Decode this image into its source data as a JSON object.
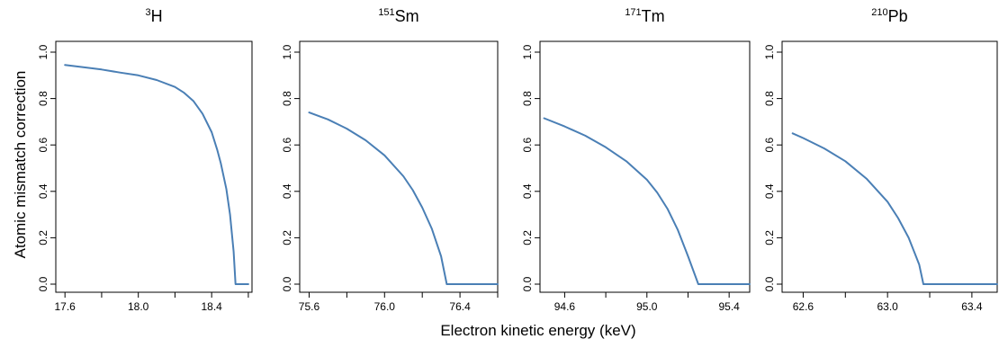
{
  "figure": {
    "xlabel": "Electron kinetic energy (keV)",
    "ylabel": "Atomic mismatch correction"
  },
  "chart_data": [
    {
      "type": "line",
      "title_sup": "3",
      "title_main": "H",
      "xlim": [
        17.55,
        18.62
      ],
      "ylim": [
        0,
        1.0
      ],
      "xticks": [
        17.6,
        17.8,
        18.0,
        18.2,
        18.4,
        18.6
      ],
      "xtick_labels": [
        "17.6",
        "",
        "18.0",
        "",
        "18.4",
        ""
      ],
      "yticks": [
        0.0,
        0.2,
        0.4,
        0.6,
        0.8,
        1.0
      ],
      "ytick_labels": [
        "0.0",
        "0.2",
        "0.4",
        "0.6",
        "0.8",
        "1.0"
      ],
      "series": [
        {
          "color": "#4a7fb5",
          "x": [
            17.6,
            17.7,
            17.8,
            17.9,
            18.0,
            18.1,
            18.2,
            18.25,
            18.3,
            18.35,
            18.4,
            18.43,
            18.45,
            18.48,
            18.5,
            18.52,
            18.53,
            18.55,
            18.6
          ],
          "y": [
            0.945,
            0.935,
            0.925,
            0.912,
            0.9,
            0.88,
            0.85,
            0.825,
            0.79,
            0.735,
            0.655,
            0.58,
            0.52,
            0.41,
            0.3,
            0.14,
            0.0,
            0.0,
            0.0
          ]
        }
      ]
    },
    {
      "type": "line",
      "title_sup": "151",
      "title_main": "Sm",
      "xlim": [
        75.55,
        76.6
      ],
      "ylim": [
        0,
        1.0
      ],
      "xticks": [
        75.6,
        75.8,
        76.0,
        76.2,
        76.4,
        76.6
      ],
      "xtick_labels": [
        "75.6",
        "",
        "76.0",
        "",
        "76.4",
        ""
      ],
      "yticks": [
        0.0,
        0.2,
        0.4,
        0.6,
        0.8,
        1.0
      ],
      "ytick_labels": [
        "0.0",
        "0.2",
        "0.4",
        "0.6",
        "0.8",
        "1.0"
      ],
      "series": [
        {
          "color": "#4a7fb5",
          "x": [
            75.6,
            75.7,
            75.8,
            75.9,
            76.0,
            76.1,
            76.15,
            76.2,
            76.25,
            76.3,
            76.33,
            76.35,
            76.45,
            76.55,
            76.6
          ],
          "y": [
            0.74,
            0.71,
            0.67,
            0.62,
            0.555,
            0.465,
            0.405,
            0.33,
            0.24,
            0.12,
            0.0,
            0.0,
            0.0,
            0.0,
            0.0
          ]
        }
      ]
    },
    {
      "type": "line",
      "title_sup": "171",
      "title_main": "Tm",
      "xlim": [
        94.48,
        95.5
      ],
      "ylim": [
        0,
        1.0
      ],
      "xticks": [
        94.6,
        94.8,
        95.0,
        95.2,
        95.4
      ],
      "xtick_labels": [
        "94.6",
        "",
        "95.0",
        "",
        "95.4"
      ],
      "yticks": [
        0.0,
        0.2,
        0.4,
        0.6,
        0.8,
        1.0
      ],
      "ytick_labels": [
        "0.0",
        "0.2",
        "0.4",
        "0.6",
        "0.8",
        "1.0"
      ],
      "series": [
        {
          "color": "#4a7fb5",
          "x": [
            94.5,
            94.6,
            94.7,
            94.8,
            94.9,
            95.0,
            95.05,
            95.1,
            95.15,
            95.2,
            95.25,
            95.3,
            95.4,
            95.5
          ],
          "y": [
            0.715,
            0.68,
            0.64,
            0.59,
            0.53,
            0.45,
            0.395,
            0.325,
            0.235,
            0.12,
            0.0,
            0.0,
            0.0,
            0.0
          ]
        }
      ]
    },
    {
      "type": "line",
      "title_sup": "210",
      "title_main": "Pb",
      "xlim": [
        62.5,
        63.52
      ],
      "ylim": [
        0,
        1.0
      ],
      "xticks": [
        62.6,
        62.8,
        63.0,
        63.2,
        63.4
      ],
      "xtick_labels": [
        "62.6",
        "",
        "63.0",
        "",
        "63.4"
      ],
      "yticks": [
        0.0,
        0.2,
        0.4,
        0.6,
        0.8,
        1.0
      ],
      "ytick_labels": [
        "0.0",
        "0.2",
        "0.4",
        "0.6",
        "0.8",
        "1.0"
      ],
      "series": [
        {
          "color": "#4a7fb5",
          "x": [
            62.55,
            62.6,
            62.7,
            62.8,
            62.9,
            63.0,
            63.05,
            63.1,
            63.15,
            63.17,
            63.25,
            63.35,
            63.45,
            63.52
          ],
          "y": [
            0.65,
            0.63,
            0.585,
            0.53,
            0.455,
            0.355,
            0.285,
            0.2,
            0.085,
            0.0,
            0.0,
            0.0,
            0.0,
            0.0
          ]
        }
      ]
    }
  ]
}
